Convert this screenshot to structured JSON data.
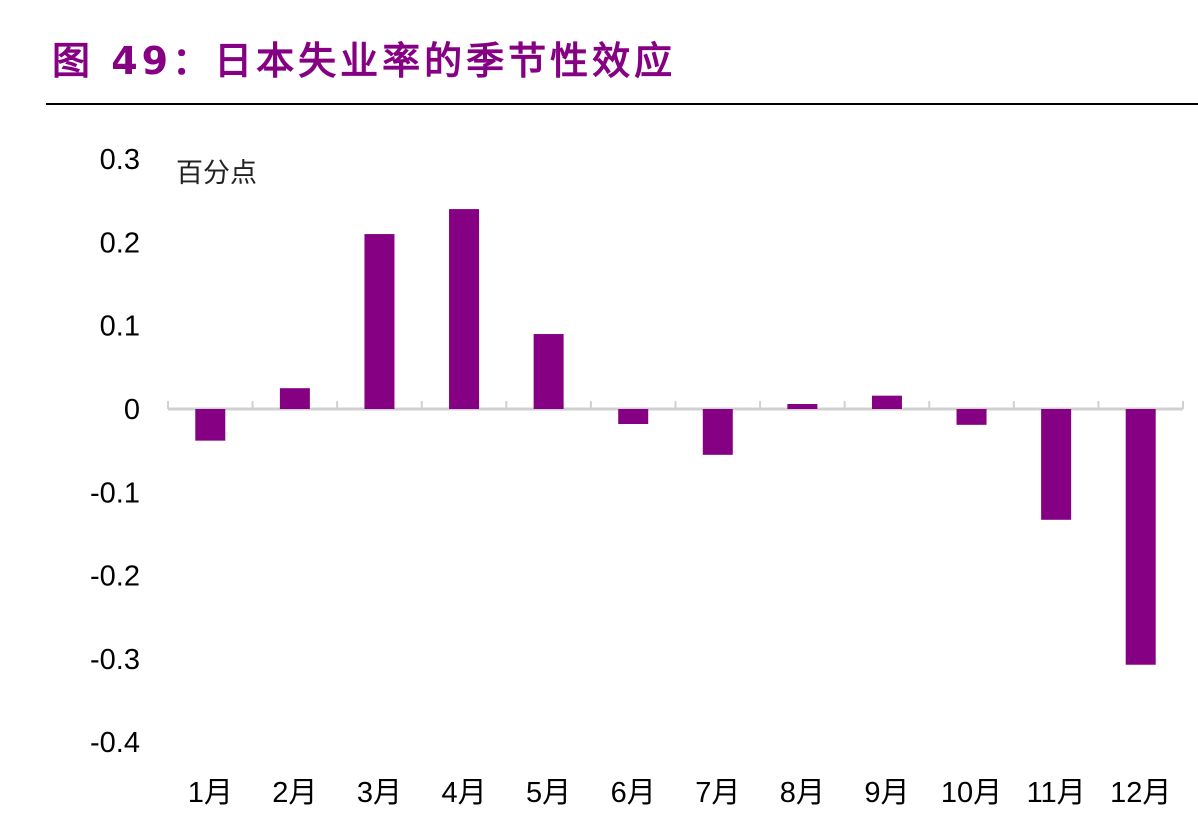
{
  "title": "图 49：日本失业率的季节性效应",
  "chart_data": {
    "type": "bar",
    "title": "图 49：日本失业率的季节性效应",
    "ylabel": "百分点",
    "xlabel": "",
    "categories": [
      "1月",
      "2月",
      "3月",
      "4月",
      "5月",
      "6月",
      "7月",
      "8月",
      "9月",
      "10月",
      "11月",
      "12月"
    ],
    "values": [
      -0.038,
      0.025,
      0.21,
      0.24,
      0.09,
      -0.018,
      -0.055,
      0.006,
      0.016,
      -0.019,
      -0.133,
      -0.307
    ],
    "ylim": [
      -0.4,
      0.3
    ],
    "yticks": [
      "0.3",
      "0.2",
      "0.1",
      "0",
      "-0.1",
      "-0.2",
      "-0.3",
      "-0.4"
    ],
    "ytick_values": [
      0.3,
      0.2,
      0.1,
      0,
      -0.1,
      -0.2,
      -0.3,
      -0.4
    ],
    "grid": false,
    "bar_color": "#860084"
  }
}
